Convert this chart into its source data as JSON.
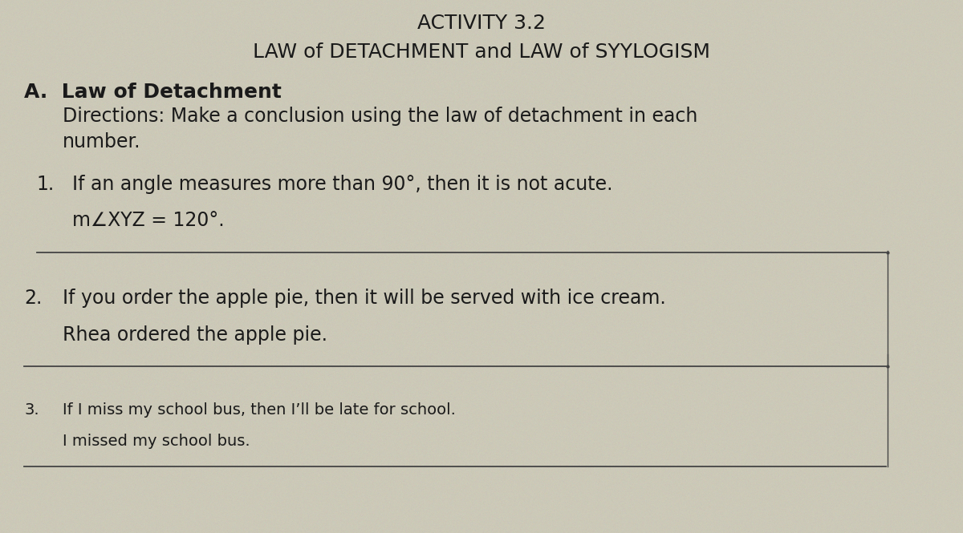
{
  "title_line1": "ACTIVITY 3.2",
  "title_line2": "LAW of DETACHMENT and LAW of SYYLOGISM",
  "section_label": "A.  Law of Detachment",
  "directions_line1": "Directions: Make a conclusion using the law of detachment in each",
  "directions_line2": "number.",
  "items": [
    {
      "number": "1.",
      "line1": "If an angle measures more than 90°, then it is not acute.",
      "line2": "m∠XYZ = 120°."
    },
    {
      "number": "2.",
      "line1": "If you order the apple pie, then it will be served with ice cream.",
      "line2": "Rhea ordered the apple pie."
    },
    {
      "number": "3.",
      "line1": "If I miss my school bus, then I’ll be late for school.",
      "line2": "I missed my school bus."
    }
  ],
  "bg_color": "#ccc9b8",
  "text_color": "#1a1a1a",
  "line_color": "#444444",
  "title_fontsize": 18,
  "section_fontsize": 18,
  "directions_fontsize": 17,
  "item_fontsize": 17,
  "item3_fontsize": 14
}
